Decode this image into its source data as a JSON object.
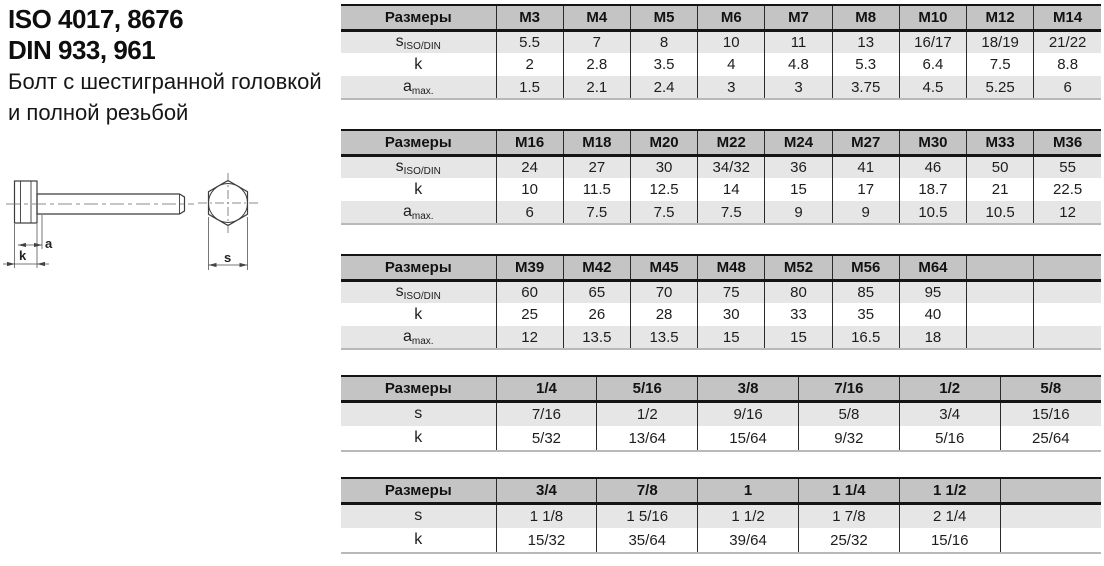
{
  "header": {
    "iso_line": "ISO 4017, 8676",
    "din_line": "DIN 933, 961",
    "description_line1": "Болт с шестигранной головкой",
    "description_line2": "и полной резьбой"
  },
  "drawing": {
    "dim_a": "a",
    "dim_k": "k",
    "dim_s": "s"
  },
  "tables": [
    {
      "name": "metric-table-m3-m14",
      "corner_label": "Размеры",
      "columns": [
        "M3",
        "M4",
        "M5",
        "M6",
        "M7",
        "M8",
        "M10",
        "M12",
        "M14"
      ],
      "rows": [
        {
          "label": "s",
          "label_sub": "ISO/DIN",
          "values": [
            "5.5",
            "7",
            "8",
            "10",
            "11",
            "13",
            "16/17",
            "18/19",
            "21/22"
          ]
        },
        {
          "label": "k",
          "label_sub": "",
          "values": [
            "2",
            "2.8",
            "3.5",
            "4",
            "4.8",
            "5.3",
            "6.4",
            "7.5",
            "8.8"
          ]
        },
        {
          "label": "a",
          "label_sub": "max.",
          "values": [
            "1.5",
            "2.1",
            "2.4",
            "3",
            "3",
            "3.75",
            "4.5",
            "5.25",
            "6"
          ]
        }
      ]
    },
    {
      "name": "metric-table-m16-m36",
      "corner_label": "Размеры",
      "columns": [
        "M16",
        "M18",
        "M20",
        "M22",
        "M24",
        "M27",
        "M30",
        "M33",
        "M36"
      ],
      "rows": [
        {
          "label": "s",
          "label_sub": "ISO/DIN",
          "values": [
            "24",
            "27",
            "30",
            "34/32",
            "36",
            "41",
            "46",
            "50",
            "55"
          ]
        },
        {
          "label": "k",
          "label_sub": "",
          "values": [
            "10",
            "11.5",
            "12.5",
            "14",
            "15",
            "17",
            "18.7",
            "21",
            "22.5"
          ]
        },
        {
          "label": "a",
          "label_sub": "max.",
          "values": [
            "6",
            "7.5",
            "7.5",
            "7.5",
            "9",
            "9",
            "10.5",
            "10.5",
            "12"
          ]
        }
      ]
    },
    {
      "name": "metric-table-m39-m64",
      "corner_label": "Размеры",
      "columns": [
        "M39",
        "M42",
        "M45",
        "M48",
        "M52",
        "M56",
        "M64",
        "",
        ""
      ],
      "rows": [
        {
          "label": "s",
          "label_sub": "ISO/DIN",
          "values": [
            "60",
            "65",
            "70",
            "75",
            "80",
            "85",
            "95",
            "",
            ""
          ]
        },
        {
          "label": "k",
          "label_sub": "",
          "values": [
            "25",
            "26",
            "28",
            "30",
            "33",
            "35",
            "40",
            "",
            ""
          ]
        },
        {
          "label": "a",
          "label_sub": "max.",
          "values": [
            "12",
            "13.5",
            "13.5",
            "15",
            "15",
            "16.5",
            "18",
            "",
            ""
          ]
        }
      ]
    },
    {
      "name": "imperial-table-1-4-to-5-8",
      "corner_label": "Размеры",
      "columns": [
        "1/4",
        "5/16",
        "3/8",
        "7/16",
        "1/2",
        "5/8"
      ],
      "rows": [
        {
          "label": "s",
          "label_sub": "",
          "values": [
            "7/16",
            "1/2",
            "9/16",
            "5/8",
            "3/4",
            "15/16"
          ]
        },
        {
          "label": "k",
          "label_sub": "",
          "values": [
            "5/32",
            "13/64",
            "15/64",
            "9/32",
            "5/16",
            "25/64"
          ]
        }
      ]
    },
    {
      "name": "imperial-table-3-4-to-1-1-2",
      "corner_label": "Размеры",
      "columns": [
        "3/4",
        "7/8",
        "1",
        "1 1/4",
        "1 1/2",
        ""
      ],
      "rows": [
        {
          "label": "s",
          "label_sub": "",
          "values": [
            "1 1/8",
            "1 5/16",
            "1 1/2",
            "1 7/8",
            "2 1/4",
            ""
          ]
        },
        {
          "label": "k",
          "label_sub": "",
          "values": [
            "15/32",
            "35/64",
            "39/64",
            "25/32",
            "15/16",
            ""
          ]
        }
      ]
    }
  ],
  "colors": {
    "header_bg": "#c4c4c4",
    "row_alt_bg": "#e6e6e6",
    "border_dark": "#141414",
    "text": "#1d1d1d"
  }
}
